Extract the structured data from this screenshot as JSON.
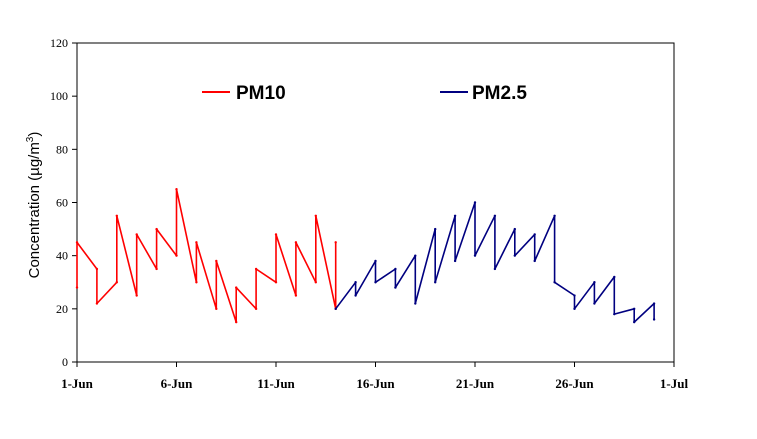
{
  "chart_data": {
    "type": "line",
    "ylabel": "Concentration (µg/m",
    "ylabel_sup": "3",
    "ylabel_close": ")",
    "ylim": [
      0,
      120
    ],
    "yticks": [
      0,
      20,
      40,
      60,
      80,
      100,
      120
    ],
    "xlim": [
      "2009-06-01",
      "2009-07-01"
    ],
    "xticks": [
      "1-Jun",
      "6-Jun",
      "11-Jun",
      "16-Jun",
      "21-Jun",
      "26-Jun",
      "1-Jul"
    ],
    "grid": false,
    "legend_position": "top",
    "series": [
      {
        "name": "PM10",
        "color": "#ff0000",
        "x": [
          "2009-06-01",
          "2009-06-01",
          "2009-06-02",
          "2009-06-02",
          "2009-06-03",
          "2009-06-03",
          "2009-06-04",
          "2009-06-04",
          "2009-06-05",
          "2009-06-05",
          "2009-06-06",
          "2009-06-06",
          "2009-06-07",
          "2009-06-07",
          "2009-06-08",
          "2009-06-08",
          "2009-06-09",
          "2009-06-09",
          "2009-06-10",
          "2009-06-10",
          "2009-06-11",
          "2009-06-11",
          "2009-06-12",
          "2009-06-12",
          "2009-06-13",
          "2009-06-13",
          "2009-06-14",
          "2009-06-14"
        ],
        "values": [
          28,
          45,
          35,
          22,
          30,
          55,
          25,
          48,
          35,
          50,
          40,
          65,
          30,
          45,
          20,
          38,
          15,
          28,
          20,
          35,
          30,
          48,
          25,
          45,
          30,
          55,
          20,
          45
        ]
      },
      {
        "name": "PM2.5",
        "color": "#000080",
        "x": [
          "2009-06-14",
          "2009-06-15",
          "2009-06-15",
          "2009-06-16",
          "2009-06-16",
          "2009-06-17",
          "2009-06-17",
          "2009-06-18",
          "2009-06-18",
          "2009-06-19",
          "2009-06-19",
          "2009-06-20",
          "2009-06-20",
          "2009-06-21",
          "2009-06-21",
          "2009-06-22",
          "2009-06-22",
          "2009-06-23",
          "2009-06-23",
          "2009-06-24",
          "2009-06-24",
          "2009-06-25",
          "2009-06-25",
          "2009-06-26",
          "2009-06-26",
          "2009-06-27",
          "2009-06-27",
          "2009-06-28",
          "2009-06-28",
          "2009-06-29",
          "2009-06-29",
          "2009-06-30",
          "2009-06-30"
        ],
        "values": [
          20,
          30,
          25,
          38,
          30,
          35,
          28,
          40,
          22,
          50,
          30,
          55,
          38,
          60,
          40,
          55,
          35,
          50,
          40,
          48,
          38,
          55,
          30,
          25,
          20,
          30,
          22,
          32,
          18,
          20,
          15,
          22,
          16
        ]
      }
    ]
  }
}
